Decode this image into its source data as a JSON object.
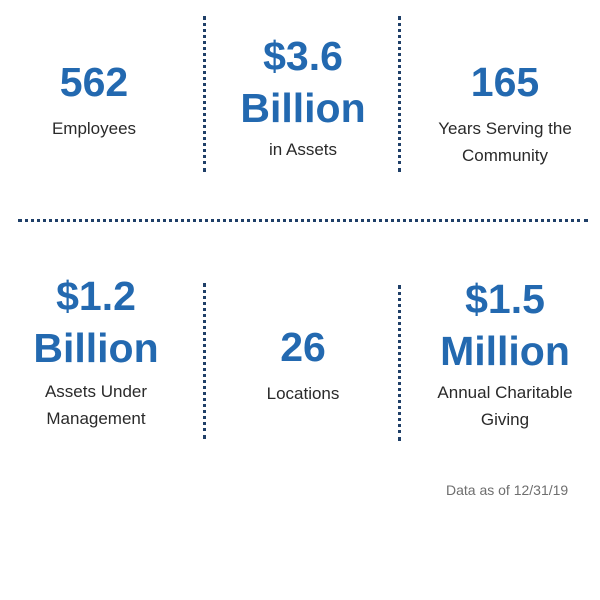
{
  "colors": {
    "accent": "#2369b0",
    "divider": "#1f3f68"
  },
  "stats": {
    "employees": {
      "value": "562",
      "label": "Employees"
    },
    "assets": {
      "value_line1": "$3.6",
      "value_line2": "Billion",
      "label": "in Assets"
    },
    "years": {
      "value": "165",
      "label_line1": "Years Serving the",
      "label_line2": "Community"
    },
    "aum": {
      "value_line1": "$1.2",
      "value_line2": "Billion",
      "label_line1": "Assets Under",
      "label_line2": "Management"
    },
    "locations": {
      "value": "26",
      "label": "Locations"
    },
    "giving": {
      "value_line1": "$1.5",
      "value_line2": "Million",
      "label_line1": "Annual Charitable",
      "label_line2": "Giving"
    }
  },
  "footnote": "Data as of 12/31/19"
}
